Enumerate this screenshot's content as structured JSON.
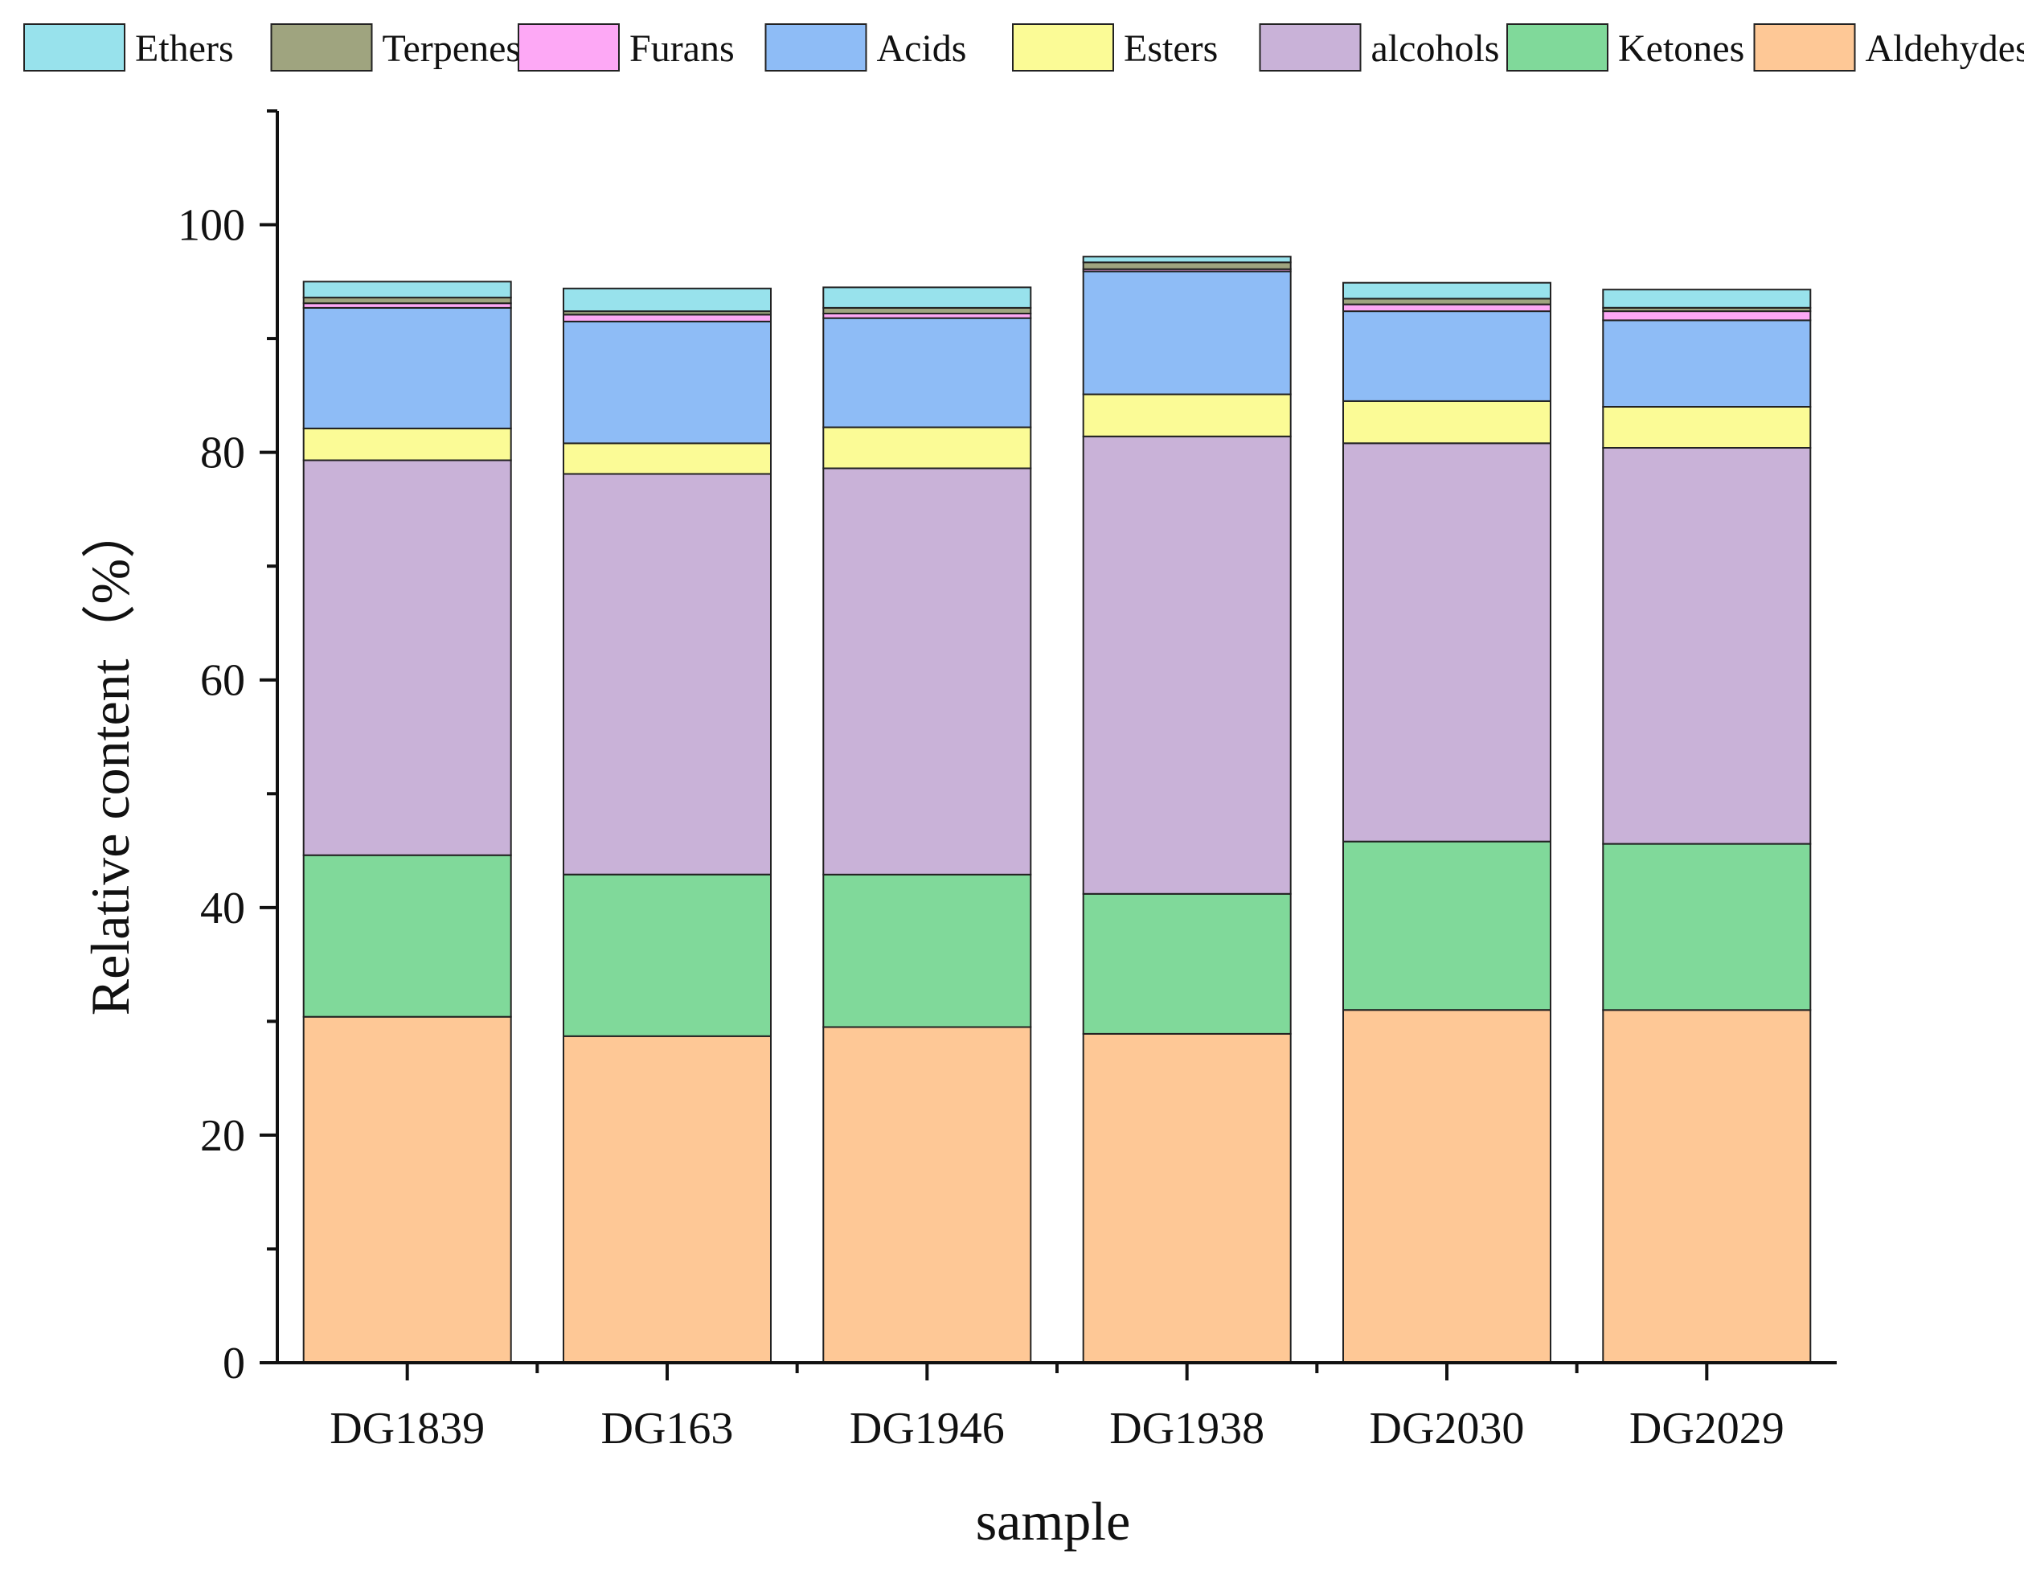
{
  "chart_data": {
    "type": "bar",
    "stacked": true,
    "title": "",
    "xlabel": "sample",
    "ylabel": "Relative content（%）",
    "ylim": [
      0,
      110
    ],
    "yticks": [
      0,
      20,
      40,
      60,
      80,
      100
    ],
    "y_minor_step": 10,
    "grid": false,
    "legend_position": "top",
    "categories": [
      "DG1839",
      "DG163",
      "DG1946",
      "DG1938",
      "DG2030",
      "DG2029"
    ],
    "series": [
      {
        "name": "Aldehydes",
        "color": "#FEC896",
        "values": [
          30.4,
          28.7,
          29.5,
          28.9,
          31.0,
          31.0
        ]
      },
      {
        "name": "Ketones",
        "color": "#80D99A",
        "values": [
          14.2,
          14.2,
          13.4,
          12.3,
          14.8,
          14.6
        ]
      },
      {
        "name": "alcohols",
        "color": "#C9B2D8",
        "values": [
          34.7,
          35.2,
          35.7,
          40.2,
          35.0,
          34.8
        ]
      },
      {
        "name": "Esters",
        "color": "#FBFB96",
        "values": [
          2.8,
          2.7,
          3.6,
          3.7,
          3.7,
          3.6
        ]
      },
      {
        "name": "Acids",
        "color": "#8EBCF6",
        "values": [
          10.6,
          10.7,
          9.6,
          10.8,
          7.9,
          7.6
        ]
      },
      {
        "name": "Furans",
        "color": "#FDA8F5",
        "values": [
          0.4,
          0.6,
          0.4,
          0.2,
          0.6,
          0.8
        ]
      },
      {
        "name": "Terpenes",
        "color": "#9FA47F",
        "values": [
          0.5,
          0.3,
          0.5,
          0.6,
          0.5,
          0.3
        ]
      },
      {
        "name": "Ethers",
        "color": "#98E2EC",
        "values": [
          1.4,
          2.0,
          1.8,
          0.5,
          1.4,
          1.6
        ]
      }
    ],
    "legend_order": [
      "Ethers",
      "Terpenes",
      "Furans",
      "Acids",
      "Esters",
      "alcohols",
      "Ketones",
      "Aldehydes"
    ]
  }
}
